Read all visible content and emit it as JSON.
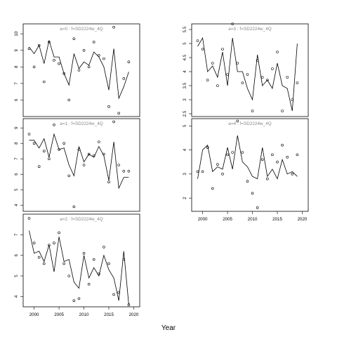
{
  "figure": {
    "xlabel": "Year"
  },
  "chart_data": [
    {
      "type": "line",
      "title": "a=0  :  f=SD2224w_4Q",
      "ylim": [
        5.0,
        10.6
      ],
      "yticks": [
        6,
        7,
        8,
        9,
        10
      ],
      "xlim": [
        1997.8,
        2021.2
      ],
      "xticks": [],
      "series": [
        {
          "kind": "line",
          "x": [
            1999,
            2000,
            2001,
            2002,
            2003,
            2004,
            2005,
            2006,
            2007,
            2008,
            2009,
            2010,
            2011,
            2012,
            2013,
            2014,
            2015,
            2016,
            2017,
            2018,
            2019
          ],
          "y": [
            9.2,
            8.8,
            9.3,
            8.2,
            9.6,
            8.6,
            8.6,
            7.6,
            6.9,
            8.8,
            7.9,
            8.3,
            8.1,
            8.9,
            8.6,
            8.0,
            6.6,
            9.1,
            6.1,
            6.8,
            7.7
          ]
        },
        {
          "kind": "points",
          "x": [
            1999,
            2000,
            2001,
            2002,
            2003,
            2004,
            2005,
            2006,
            2007,
            2008,
            2009,
            2010,
            2011,
            2012,
            2013,
            2014,
            2015,
            2016,
            2017,
            2018,
            2019
          ],
          "y": [
            9.1,
            8.0,
            9.3,
            7.1,
            9.5,
            8.4,
            8.2,
            7.6,
            6.0,
            9.7,
            7.8,
            9.0,
            8.0,
            9.5,
            8.7,
            8.5,
            5.6,
            10.4,
            5.2,
            7.3,
            8.3
          ]
        }
      ]
    },
    {
      "type": "line",
      "title": "a=1  :  f=SD2224w_4Q",
      "ylim": [
        3.6,
        9.6
      ],
      "yticks": [
        4,
        5,
        6,
        7,
        8,
        9
      ],
      "xlim": [
        1997.8,
        2021.2
      ],
      "xticks": [],
      "series": [
        {
          "kind": "line",
          "x": [
            1999,
            2000,
            2001,
            2002,
            2003,
            2004,
            2005,
            2006,
            2007,
            2008,
            2009,
            2010,
            2011,
            2012,
            2013,
            2014,
            2015,
            2016,
            2017,
            2018,
            2019
          ],
          "y": [
            8.2,
            8.2,
            7.7,
            8.3,
            7.1,
            8.6,
            7.6,
            7.7,
            6.6,
            5.9,
            7.8,
            6.8,
            7.3,
            7.1,
            7.8,
            7.2,
            5.6,
            8.1,
            5.1,
            5.8,
            5.8
          ]
        },
        {
          "kind": "points",
          "x": [
            1999,
            2000,
            2001,
            2002,
            2003,
            2004,
            2005,
            2006,
            2007,
            2008,
            2009,
            2010,
            2011,
            2012,
            2013,
            2014,
            2015,
            2016,
            2017,
            2018,
            2019
          ],
          "y": [
            8.6,
            8.0,
            6.5,
            7.5,
            7.0,
            9.2,
            7.6,
            8.0,
            5.9,
            3.9,
            7.6,
            6.6,
            7.3,
            7.2,
            8.1,
            7.3,
            5.5,
            9.4,
            6.6,
            6.2,
            6.2
          ]
        }
      ]
    },
    {
      "type": "line",
      "title": "a=2  :  f=SD2224w_4Q",
      "ylim": [
        3.5,
        8.0
      ],
      "yticks": [
        4,
        5,
        6,
        7
      ],
      "xlim": [
        1997.8,
        2021.2
      ],
      "xticks": [
        2000,
        2005,
        2010,
        2015,
        2020
      ],
      "series": [
        {
          "kind": "line",
          "x": [
            1999,
            2000,
            2001,
            2002,
            2003,
            2004,
            2005,
            2006,
            2007,
            2008,
            2009,
            2010,
            2011,
            2012,
            2013,
            2014,
            2015,
            2016,
            2017,
            2018,
            2019
          ],
          "y": [
            7.2,
            6.1,
            6.2,
            5.7,
            6.5,
            5.2,
            6.9,
            5.7,
            5.8,
            4.7,
            4.4,
            6.0,
            4.9,
            5.4,
            5.0,
            6.0,
            5.3,
            4.9,
            3.8,
            6.2,
            3.6
          ]
        },
        {
          "kind": "points",
          "x": [
            1999,
            2000,
            2001,
            2002,
            2003,
            2004,
            2005,
            2006,
            2007,
            2008,
            2009,
            2010,
            2011,
            2012,
            2013,
            2014,
            2015,
            2016,
            2017,
            2018,
            2019
          ],
          "y": [
            7.8,
            6.6,
            5.9,
            5.6,
            6.5,
            6.6,
            7.1,
            5.6,
            5.0,
            3.8,
            3.9,
            6.1,
            4.6,
            5.8,
            5.1,
            6.4,
            5.6,
            4.1,
            4.2,
            5.8,
            3.6
          ]
        }
      ]
    },
    {
      "type": "line",
      "title": "a=3  :  f=SD2224w_4Q",
      "ylim": [
        2.4,
        5.7
      ],
      "yticks": [
        2.5,
        3.0,
        3.5,
        4.0,
        4.5,
        5.0,
        5.5
      ],
      "xlim": [
        1997.8,
        2021.2
      ],
      "xticks": [],
      "series": [
        {
          "kind": "line",
          "x": [
            1999,
            2000,
            2001,
            2002,
            2003,
            2004,
            2005,
            2006,
            2007,
            2008,
            2009,
            2010,
            2011,
            2012,
            2013,
            2014,
            2015,
            2016,
            2017,
            2018,
            2019
          ],
          "y": [
            4.9,
            5.2,
            4.0,
            4.2,
            3.8,
            4.7,
            3.5,
            5.2,
            4.0,
            4.0,
            3.4,
            3.0,
            4.6,
            3.5,
            3.7,
            3.4,
            4.3,
            3.5,
            3.4,
            2.6,
            5.0
          ]
        },
        {
          "kind": "points",
          "x": [
            1999,
            2000,
            2001,
            2002,
            2003,
            2004,
            2005,
            2006,
            2007,
            2008,
            2009,
            2010,
            2011,
            2012,
            2013,
            2014,
            2015,
            2016,
            2017,
            2018,
            2019
          ],
          "y": [
            5.1,
            4.8,
            3.7,
            4.3,
            3.5,
            4.8,
            3.9,
            5.7,
            4.3,
            3.6,
            3.9,
            2.6,
            4.4,
            3.8,
            3.7,
            4.1,
            4.7,
            2.6,
            3.8,
            3.0,
            3.6
          ]
        }
      ]
    },
    {
      "type": "line",
      "title": "a=4  :  f=SD2224w_4Q",
      "ylim": [
        1.45,
        5.3
      ],
      "yticks": [
        2,
        3,
        4,
        5
      ],
      "xlim": [
        1997.8,
        2021.2
      ],
      "xticks": [
        2000,
        2005,
        2010,
        2015,
        2020
      ],
      "series": [
        {
          "kind": "line",
          "x": [
            1999,
            2000,
            2001,
            2002,
            2003,
            2004,
            2005,
            2006,
            2007,
            2008,
            2009,
            2010,
            2011,
            2012,
            2013,
            2014,
            2015,
            2016,
            2017,
            2018,
            2019
          ],
          "y": [
            2.8,
            4.0,
            4.2,
            3.1,
            3.3,
            3.2,
            4.1,
            3.2,
            4.6,
            3.5,
            3.3,
            2.9,
            2.8,
            4.1,
            2.9,
            3.2,
            2.8,
            3.6,
            3.0,
            3.1,
            2.9
          ]
        },
        {
          "kind": "points",
          "x": [
            1999,
            2000,
            2001,
            2002,
            2003,
            2004,
            2005,
            2006,
            2007,
            2008,
            2009,
            2010,
            2011,
            2012,
            2013,
            2014,
            2015,
            2016,
            2017,
            2018,
            2019
          ],
          "y": [
            3.1,
            3.1,
            4.1,
            2.4,
            3.4,
            3.0,
            3.8,
            3.9,
            5.2,
            3.9,
            2.7,
            2.2,
            1.6,
            3.6,
            2.8,
            3.8,
            3.5,
            4.2,
            3.7,
            3.0,
            3.8
          ]
        }
      ]
    }
  ]
}
